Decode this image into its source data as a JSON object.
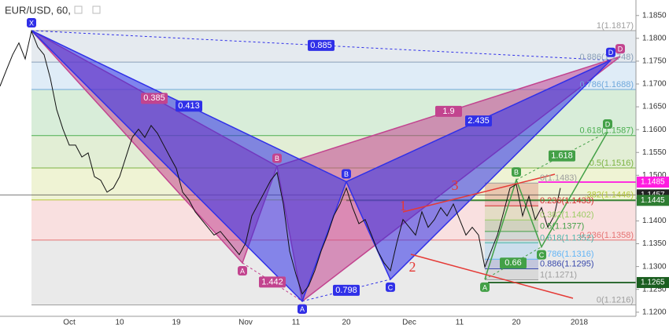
{
  "chart_data": {
    "type": "line",
    "title": "EUR/USD, 60,",
    "color": "#111111",
    "categories": [
      null,
      null,
      null,
      null,
      null,
      null,
      null,
      null,
      null,
      null,
      null,
      "Oct",
      null,
      null,
      null,
      null,
      null,
      null,
      null,
      "10",
      null,
      null,
      null,
      null,
      null,
      null,
      null,
      null,
      "19",
      null,
      null,
      null,
      null,
      null,
      null,
      null,
      null,
      null,
      null,
      "Nov",
      null,
      null,
      null,
      null,
      null,
      null,
      null,
      "11",
      null,
      null,
      null,
      null,
      null,
      null,
      null,
      "20",
      null,
      null,
      null,
      null,
      null,
      null,
      null,
      null,
      null,
      "Dec",
      null,
      null,
      null,
      null,
      null,
      null,
      null,
      "11",
      null,
      null,
      null,
      null,
      null,
      null,
      null,
      null,
      "20",
      null,
      null,
      null,
      null,
      null,
      null,
      null,
      null,
      null,
      "2018",
      null,
      null,
      null,
      null,
      null,
      null,
      null,
      null
    ],
    "values": [
      1.1695,
      1.173,
      1.1764,
      1.179,
      1.1755,
      1.1816,
      1.1781,
      1.1764,
      1.1712,
      1.1644,
      1.1601,
      1.1566,
      1.1566,
      1.154,
      1.1549,
      1.1497,
      1.1489,
      1.1463,
      1.1472,
      1.1497,
      1.154,
      1.1583,
      1.1601,
      1.1583,
      1.1609,
      1.1592,
      1.1566,
      1.154,
      1.1515,
      1.1463,
      1.1446,
      1.142,
      1.1403,
      1.1386,
      1.1369,
      1.1377,
      1.136,
      1.1343,
      1.1326,
      1.1351,
      1.1411,
      1.1437,
      1.1463,
      1.1489,
      1.1506,
      1.1437,
      1.1334,
      1.1283,
      1.124,
      1.1257,
      1.1291,
      1.1334,
      1.1369,
      1.1411,
      1.1437,
      1.1472,
      1.1429,
      1.1394,
      1.1403,
      1.1369,
      1.1334,
      1.1308,
      1.1291,
      1.1351,
      1.1403,
      1.1386,
      1.1369,
      1.142,
      1.1386,
      1.1403,
      1.1429,
      1.1411,
      1.1437,
      1.1403,
      1.1369,
      1.1386,
      1.1369,
      1.1299,
      1.1334,
      1.1369,
      1.142,
      1.1472,
      1.148,
      1.1411,
      1.1454,
      1.1403,
      1.1429,
      1.1386,
      1.1411,
      1.1472,
      null,
      null,
      null,
      null,
      null,
      null,
      null,
      null,
      null,
      null,
      null
    ],
    "ylim": [
      1.1191,
      1.1884
    ],
    "yticks": [
      {
        "value": 1.12,
        "label": "1.1200"
      },
      {
        "value": 1.125,
        "label": "1.1250"
      },
      {
        "value": 1.13,
        "label": "1.1300"
      },
      {
        "value": 1.135,
        "label": "1.1350"
      },
      {
        "value": 1.14,
        "label": "1.1400"
      },
      {
        "value": 1.145,
        "label": "1.1450"
      },
      {
        "value": 1.15,
        "label": "1.1500"
      },
      {
        "value": 1.155,
        "label": "1.1550"
      },
      {
        "value": 1.16,
        "label": "1.1600"
      },
      {
        "value": 1.165,
        "label": "1.1650"
      },
      {
        "value": 1.17,
        "label": "1.1700"
      },
      {
        "value": 1.175,
        "label": "1.1750"
      },
      {
        "value": 1.18,
        "label": "1.1800"
      },
      {
        "value": 1.185,
        "label": "1.1850"
      }
    ],
    "fib_levels": [
      {
        "label": "1(1.1817)",
        "value": 1.1817,
        "color": "#9e9e9e"
      },
      {
        "label": "0.886(1.1748)",
        "value": 1.1748,
        "color": "#8aa0b8"
      },
      {
        "label": "0.786(1.1688)",
        "value": 1.1688,
        "color": "#6fa8dc"
      },
      {
        "label": "0.618(1.1587)",
        "value": 1.1587,
        "color": "#4caf50"
      },
      {
        "label": "0.5(1.1516)",
        "value": 1.1516,
        "color": "#7cb342"
      },
      {
        "label": ".382(1.1446)",
        "value": 1.1446,
        "color": "#b5c93a"
      },
      {
        "label": "0.236(1.1358)",
        "value": 1.1358,
        "color": "#e57373"
      },
      {
        "label": "0(1.1216)",
        "value": 1.1216,
        "color": "#9e9e9e"
      }
    ],
    "fib_levels_2": [
      {
        "label": "0(1.1483)",
        "value": 1.1483,
        "color": "#9e9e9e"
      },
      {
        "label": "0.236(1.1433)",
        "value": 1.1433,
        "color": "#d32f2f"
      },
      {
        "label": "0.382(1.1402)",
        "value": 1.1402,
        "color": "#9ccc65"
      },
      {
        "label": "0.5(1.1377)",
        "value": 1.1377,
        "color": "#43a047"
      },
      {
        "label": "0.618(1.1352)",
        "value": 1.1352,
        "color": "#4db6ac"
      },
      {
        "label": "0.786(1.1316)",
        "value": 1.1316,
        "color": "#64b5f6"
      },
      {
        "label": "0.886(1.1295)",
        "value": 1.1295,
        "color": "#3949ab"
      },
      {
        "label": "1(1.1271)",
        "value": 1.1271,
        "color": "#9e9e9e"
      }
    ],
    "patterns": [
      {
        "color": "#c2448f",
        "points": [
          {
            "label": "X",
            "x": 5,
            "value": 1.1817
          },
          {
            "label": "A",
            "x": 38.5,
            "value": 1.1308
          },
          {
            "label": "B",
            "x": 44,
            "value": 1.152
          },
          {
            "label": "C",
            "x": 48,
            "value": 1.1224
          },
          {
            "label": "D",
            "x": 98.5,
            "value": 1.176
          }
        ],
        "ratios": {
          "XB": 0.385,
          "AC": 1.442,
          "BD": 1.9
        }
      },
      {
        "color": "#3030e8",
        "points": [
          {
            "label": "X",
            "x": 5,
            "value": 1.1817
          },
          {
            "label": "A",
            "x": 48,
            "value": 1.1224
          },
          {
            "label": "B",
            "x": 55,
            "value": 1.1486
          },
          {
            "label": "C",
            "x": 62,
            "value": 1.1272
          },
          {
            "label": "D",
            "x": 97,
            "value": 1.1752
          }
        ],
        "ratios": {
          "XB": 0.413,
          "AC": 0.798,
          "BD": 2.435,
          "XD": 0.885
        }
      },
      {
        "color": "#43a047",
        "points": [
          {
            "label": "A",
            "x": 77,
            "value": 1.1272
          },
          {
            "label": "B",
            "x": 82,
            "value": 1.149
          },
          {
            "label": "C",
            "x": 86,
            "value": 1.1343
          },
          {
            "label": "D",
            "x": 96.5,
            "value": 1.1595
          }
        ],
        "ratios": {
          "BD": 1.618,
          "AC": 0.66
        }
      }
    ],
    "price_tags": [
      {
        "value": 1.1485,
        "color": "#ff1ce0"
      },
      {
        "value": 1.1457,
        "color": "#222222"
      },
      {
        "value": 1.1445,
        "color": "#2e7d32"
      },
      {
        "value": 1.1265,
        "color": "#1b5e20"
      }
    ],
    "wave_labels": [
      "1",
      "2",
      "3"
    ]
  }
}
